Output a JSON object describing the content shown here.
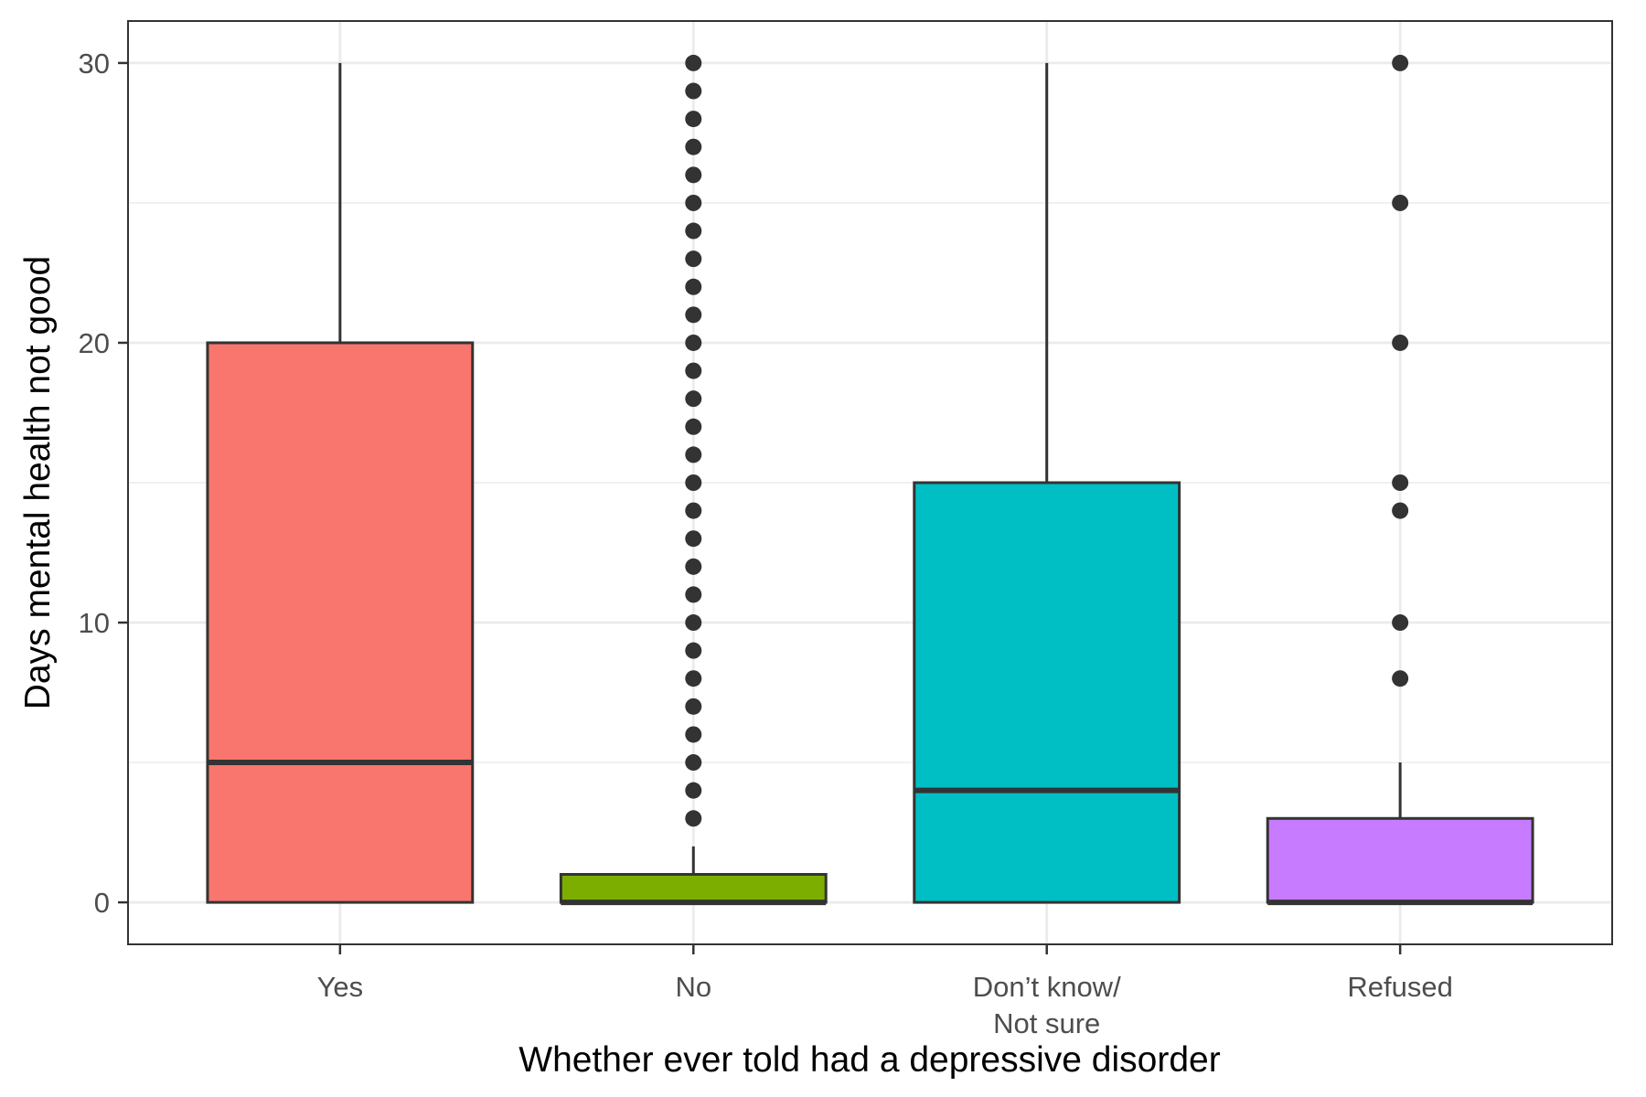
{
  "chart_data": {
    "type": "boxplot",
    "xlabel": "Whether ever told had a depressive disorder",
    "ylabel": "Days mental health not good",
    "ylim": [
      -1.5,
      31.5
    ],
    "yticks": [
      0,
      10,
      20,
      30
    ],
    "grid": true,
    "legend": "none",
    "categories": [
      {
        "label_lines": [
          "Yes"
        ],
        "color": "#F8766D",
        "min": 0,
        "q1": 0,
        "median": 5,
        "q3": 20,
        "max": 30,
        "outliers": []
      },
      {
        "label_lines": [
          "No"
        ],
        "color": "#7CAE00",
        "min": 0,
        "q1": 0,
        "median": 0,
        "q3": 1,
        "max": 2,
        "outliers": [
          3,
          4,
          5,
          6,
          7,
          8,
          9,
          10,
          11,
          12,
          13,
          14,
          15,
          16,
          17,
          18,
          19,
          20,
          21,
          22,
          23,
          24,
          25,
          26,
          27,
          28,
          29,
          30
        ]
      },
      {
        "label_lines": [
          "Don’t know/",
          "Not sure"
        ],
        "color": "#00BFC4",
        "min": 0,
        "q1": 0,
        "median": 4,
        "q3": 15,
        "max": 30,
        "outliers": []
      },
      {
        "label_lines": [
          "Refused"
        ],
        "color": "#C77CFF",
        "min": 0,
        "q1": 0,
        "median": 0,
        "q3": 3,
        "max": 5,
        "outliers": [
          8,
          10,
          14,
          15,
          20,
          25,
          30
        ]
      }
    ]
  }
}
